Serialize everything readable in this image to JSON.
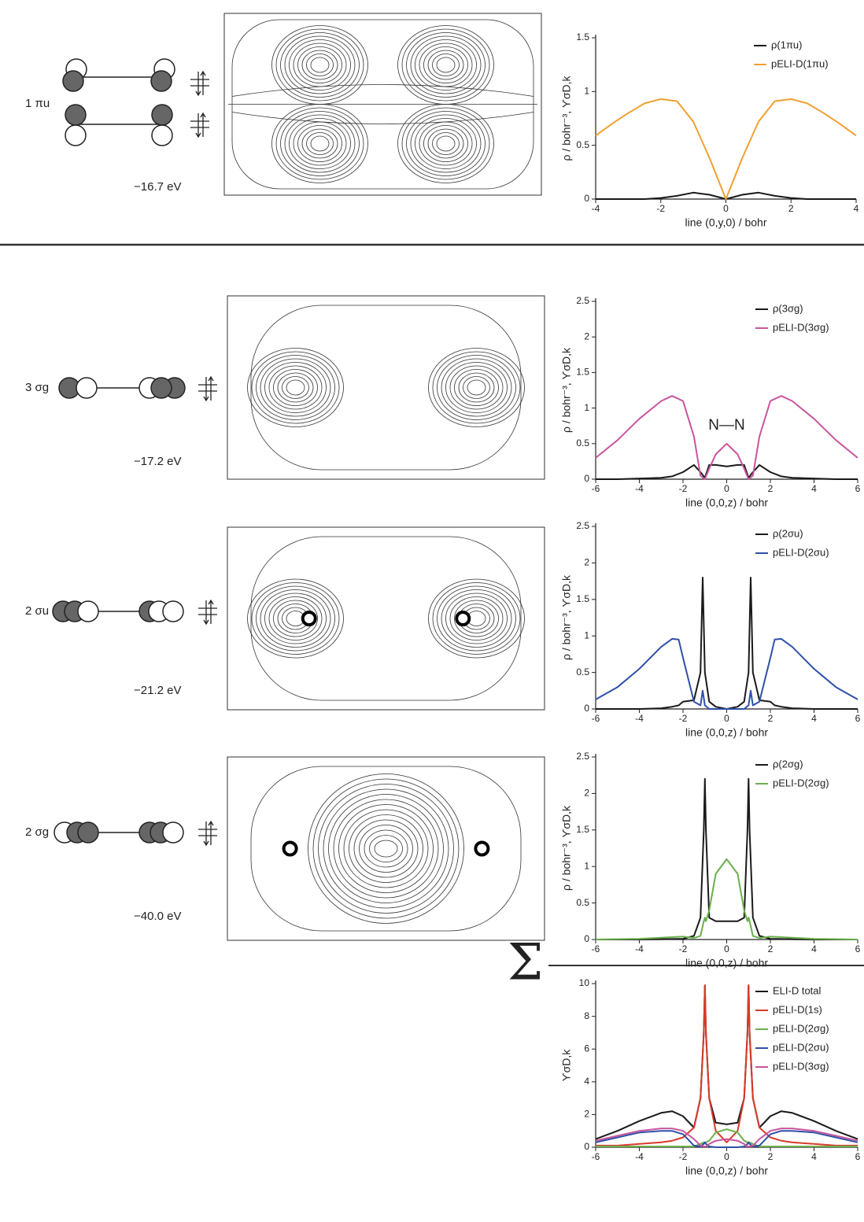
{
  "orbitals": [
    {
      "label": "1 πu",
      "energy": "−16.7 eV"
    },
    {
      "label": "3 σg",
      "energy": "−17.2 eV"
    },
    {
      "label": "2 σu",
      "energy": "−21.2 eV"
    },
    {
      "label": "2 σg",
      "energy": "−40.0 eV"
    }
  ],
  "sum_symbol": "Σ",
  "annotation": "N—N",
  "chart_data": [
    {
      "type": "line",
      "xlabel": "line (0,y,0) / bohr",
      "ylabel": "ρ / bohr⁻³, ϒσD,k",
      "legend": "upper right",
      "x": [
        -4,
        -3.5,
        -3,
        -2.5,
        -2,
        -1.5,
        -1,
        -0.5,
        0,
        0.5,
        1,
        1.5,
        2,
        2.5,
        3,
        3.5,
        4
      ],
      "xlim": [
        -4,
        4
      ],
      "xticks": [
        -4,
        -2,
        0,
        2,
        4
      ],
      "ylim": [
        0,
        1.5
      ],
      "yticks": [
        0,
        0.5,
        1,
        1.5
      ],
      "series": [
        {
          "name": "ρ(1πu)",
          "color": "#1a1a1a",
          "values": [
            0,
            0,
            0,
            0,
            0.01,
            0.03,
            0.06,
            0.04,
            0,
            0.04,
            0.06,
            0.03,
            0.01,
            0,
            0,
            0,
            0
          ]
        },
        {
          "name": "pELI-D(1πu)",
          "color": "#f0a030",
          "values": [
            0.59,
            0.7,
            0.8,
            0.89,
            0.93,
            0.91,
            0.72,
            0.38,
            0,
            0.38,
            0.72,
            0.91,
            0.93,
            0.89,
            0.8,
            0.7,
            0.59
          ]
        }
      ]
    },
    {
      "type": "line",
      "xlabel": "line (0,0,z) / bohr",
      "ylabel": "ρ / bohr⁻³, ϒσD,k",
      "legend": "upper right",
      "x": [
        -6,
        -5,
        -4,
        -3,
        -2.5,
        -2,
        -1.5,
        -1.2,
        -1,
        -0.8,
        -0.5,
        0,
        0.5,
        0.8,
        1,
        1.2,
        1.5,
        2,
        2.5,
        3,
        4,
        5,
        6
      ],
      "xlim": [
        -6,
        6
      ],
      "xticks": [
        -6,
        -4,
        -2,
        0,
        2,
        4,
        6
      ],
      "ylim": [
        0,
        2.5
      ],
      "yticks": [
        0,
        0.5,
        1,
        1.5,
        2,
        2.5
      ],
      "series": [
        {
          "name": "ρ(3σg)",
          "color": "#1a1a1a",
          "values": [
            0,
            0,
            0.01,
            0.02,
            0.04,
            0.1,
            0.2,
            0.1,
            0.02,
            0.2,
            0.2,
            0.18,
            0.2,
            0.2,
            0.02,
            0.1,
            0.2,
            0.1,
            0.04,
            0.02,
            0.01,
            0,
            0
          ]
        },
        {
          "name": "pELI-D(3σg)",
          "color": "#c8559e",
          "values": [
            0.3,
            0.55,
            0.85,
            1.1,
            1.17,
            1.1,
            0.6,
            0.05,
            0,
            0.15,
            0.35,
            0.5,
            0.35,
            0.15,
            0,
            0.05,
            0.6,
            1.1,
            1.17,
            1.1,
            0.85,
            0.55,
            0.3
          ]
        }
      ]
    },
    {
      "type": "line",
      "xlabel": "line (0,0,z) / bohr",
      "ylabel": "ρ / bohr⁻³, ϒσD,k",
      "legend": "upper right",
      "x": [
        -6,
        -5,
        -4,
        -3,
        -2.5,
        -2.2,
        -2,
        -1.5,
        -1.2,
        -1.1,
        -1,
        -0.8,
        -0.5,
        0,
        0.5,
        0.8,
        1,
        1.1,
        1.2,
        1.5,
        2,
        2.2,
        2.5,
        3,
        4,
        5,
        6
      ],
      "xlim": [
        -6,
        6
      ],
      "xticks": [
        -6,
        -4,
        -2,
        0,
        2,
        4,
        6
      ],
      "ylim": [
        0,
        2.5
      ],
      "yticks": [
        0,
        0.5,
        1,
        1.5,
        2,
        2.5
      ],
      "series": [
        {
          "name": "ρ(2σu)",
          "color": "#1a1a1a",
          "values": [
            0,
            0,
            0,
            0.01,
            0.03,
            0.05,
            0.1,
            0.12,
            0.5,
            1.8,
            0.5,
            0.1,
            0.03,
            0,
            0.03,
            0.1,
            0.5,
            1.8,
            0.5,
            0.12,
            0.1,
            0.05,
            0.03,
            0.01,
            0,
            0,
            0
          ]
        },
        {
          "name": "pELI-D(2σu)",
          "color": "#3050a8",
          "values": [
            0.13,
            0.3,
            0.55,
            0.85,
            0.96,
            0.95,
            0.7,
            0.1,
            0.05,
            0.25,
            0.05,
            0,
            0,
            0,
            0,
            0,
            0.05,
            0.25,
            0.05,
            0.1,
            0.7,
            0.95,
            0.96,
            0.85,
            0.55,
            0.3,
            0.13
          ]
        }
      ]
    },
    {
      "type": "line",
      "xlabel": "line (0,0,z) / bohr",
      "ylabel": "ρ / bohr⁻³, ϒσD,k",
      "legend": "upper right",
      "x": [
        -6,
        -4,
        -2,
        -1.5,
        -1.2,
        -1.05,
        -1,
        -0.95,
        -0.8,
        -0.5,
        0,
        0.5,
        0.8,
        0.95,
        1,
        1.05,
        1.2,
        1.5,
        2,
        4,
        6
      ],
      "xlim": [
        -6,
        6
      ],
      "xticks": [
        -6,
        -4,
        -2,
        0,
        2,
        4,
        6
      ],
      "ylim": [
        0,
        2.5
      ],
      "yticks": [
        0,
        0.5,
        1,
        1.5,
        2,
        2.5
      ],
      "series": [
        {
          "name": "ρ(2σg)",
          "color": "#1a1a1a",
          "values": [
            0,
            0,
            0.01,
            0.05,
            0.3,
            1.5,
            2.2,
            1.5,
            0.3,
            0.25,
            0.25,
            0.25,
            0.3,
            1.5,
            2.2,
            1.5,
            0.3,
            0.05,
            0.01,
            0,
            0
          ]
        },
        {
          "name": "pELI-D(2σg)",
          "color": "#6ab04c",
          "values": [
            0,
            0.01,
            0.04,
            0.02,
            0.05,
            0.25,
            0.3,
            0.25,
            0.4,
            0.9,
            1.1,
            0.9,
            0.4,
            0.25,
            0.3,
            0.25,
            0.05,
            0.02,
            0.04,
            0.01,
            0
          ]
        }
      ]
    },
    {
      "type": "line",
      "xlabel": "line (0,0,z) / bohr",
      "ylabel": "ϒσD,k",
      "legend": "upper right",
      "x": [
        -6,
        -5,
        -4,
        -3,
        -2.5,
        -2,
        -1.5,
        -1.2,
        -1.05,
        -1,
        -0.95,
        -0.8,
        -0.5,
        0,
        0.5,
        0.8,
        0.95,
        1,
        1.05,
        1.2,
        1.5,
        2,
        2.5,
        3,
        4,
        5,
        6
      ],
      "xlim": [
        -6,
        6
      ],
      "xticks": [
        -6,
        -4,
        -2,
        0,
        2,
        4,
        6
      ],
      "ylim": [
        0,
        10
      ],
      "yticks": [
        0,
        2,
        4,
        6,
        8,
        10
      ],
      "series": [
        {
          "name": "ELI-D total",
          "color": "#1a1a1a",
          "values": [
            0.5,
            1.0,
            1.6,
            2.1,
            2.2,
            1.9,
            1.2,
            3,
            7,
            9.9,
            7,
            3,
            1.5,
            1.4,
            1.5,
            3,
            7,
            9.9,
            7,
            3,
            1.2,
            1.9,
            2.2,
            2.1,
            1.6,
            1.0,
            0.5
          ]
        },
        {
          "name": "pELI-D(1s)",
          "color": "#d93a2a",
          "values": [
            0.1,
            0.1,
            0.2,
            0.3,
            0.4,
            0.6,
            1.2,
            3,
            7,
            9.9,
            7,
            3,
            1,
            0.3,
            1,
            3,
            7,
            9.9,
            7,
            3,
            1.2,
            0.6,
            0.4,
            0.3,
            0.2,
            0.1,
            0.1
          ]
        },
        {
          "name": "pELI-D(2σg)",
          "color": "#6ab04c",
          "values": [
            0.05,
            0.05,
            0.05,
            0.05,
            0.05,
            0.05,
            0.05,
            0.2,
            0.3,
            0.3,
            0.3,
            0.4,
            0.9,
            1.1,
            0.9,
            0.4,
            0.3,
            0.3,
            0.3,
            0.2,
            0.05,
            0.05,
            0.05,
            0.05,
            0.05,
            0.05,
            0.05
          ]
        },
        {
          "name": "pELI-D(2σu)",
          "color": "#3050a8",
          "values": [
            0.3,
            0.6,
            0.9,
            1.0,
            1.0,
            0.8,
            0.1,
            0.05,
            0.2,
            0.3,
            0.2,
            0.05,
            0,
            0,
            0,
            0.05,
            0.2,
            0.3,
            0.2,
            0.05,
            0.1,
            0.8,
            1.0,
            1.0,
            0.9,
            0.6,
            0.3
          ]
        },
        {
          "name": "pELI-D(3σg)",
          "color": "#c8559e",
          "values": [
            0.4,
            0.7,
            1.0,
            1.15,
            1.15,
            1.0,
            0.5,
            0.1,
            0.05,
            0.05,
            0.05,
            0.2,
            0.4,
            0.5,
            0.4,
            0.2,
            0.05,
            0.05,
            0.05,
            0.1,
            0.5,
            1.0,
            1.15,
            1.15,
            1.0,
            0.7,
            0.4
          ]
        }
      ]
    }
  ]
}
